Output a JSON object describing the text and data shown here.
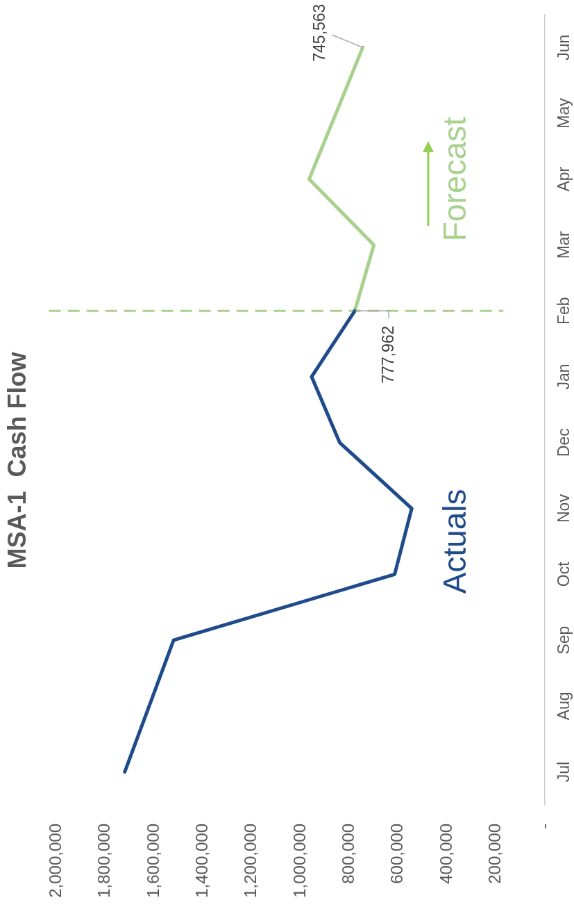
{
  "chart_data": {
    "type": "line",
    "title": "MSA-1  Cash Flow",
    "orientation": "horizontal",
    "categories": [
      "Jun",
      "May",
      "Apr",
      "Mar",
      "Feb",
      "Jan",
      "Dec",
      "Nov",
      "Oct",
      "Sep",
      "Aug",
      "Jul"
    ],
    "series": [
      {
        "name": "Actuals",
        "color": "#1f4b8b",
        "values": [
          null,
          null,
          null,
          null,
          777962,
          955000,
          840000,
          545000,
          615000,
          1520000,
          1620000,
          1720000
        ],
        "value_labels": [
          null,
          null,
          null,
          null,
          "777,962",
          null,
          null,
          null,
          null,
          null,
          null,
          null
        ]
      },
      {
        "name": "Forecast",
        "color": "#a9d18e",
        "values": [
          745563,
          855000,
          965000,
          700000,
          777962,
          null,
          null,
          null,
          null,
          null,
          null,
          null
        ],
        "value_labels": [
          "745,563",
          null,
          null,
          null,
          null,
          null,
          null,
          null,
          null,
          null,
          null,
          null
        ]
      }
    ],
    "xlim": [
      2000000,
      0
    ],
    "xticks": [
      {
        "value": 2000000,
        "label": "2,000,000"
      },
      {
        "value": 1800000,
        "label": "1,800,000"
      },
      {
        "value": 1600000,
        "label": "1,600,000"
      },
      {
        "value": 1400000,
        "label": "1,400,000"
      },
      {
        "value": 1200000,
        "label": "1,200,000"
      },
      {
        "value": 1000000,
        "label": "1,000,000"
      },
      {
        "value": 800000,
        "label": "800,000"
      },
      {
        "value": 600000,
        "label": "600,000"
      },
      {
        "value": 400000,
        "label": "400,000"
      },
      {
        "value": 200000,
        "label": "200,000"
      },
      {
        "value": 0,
        "label": "-"
      }
    ],
    "ref_lines": [
      {
        "axis": "y",
        "value": "Feb",
        "color": "#a9d18e",
        "line_style": "dashed"
      }
    ],
    "grid": false,
    "legend": false,
    "marker": "none"
  }
}
